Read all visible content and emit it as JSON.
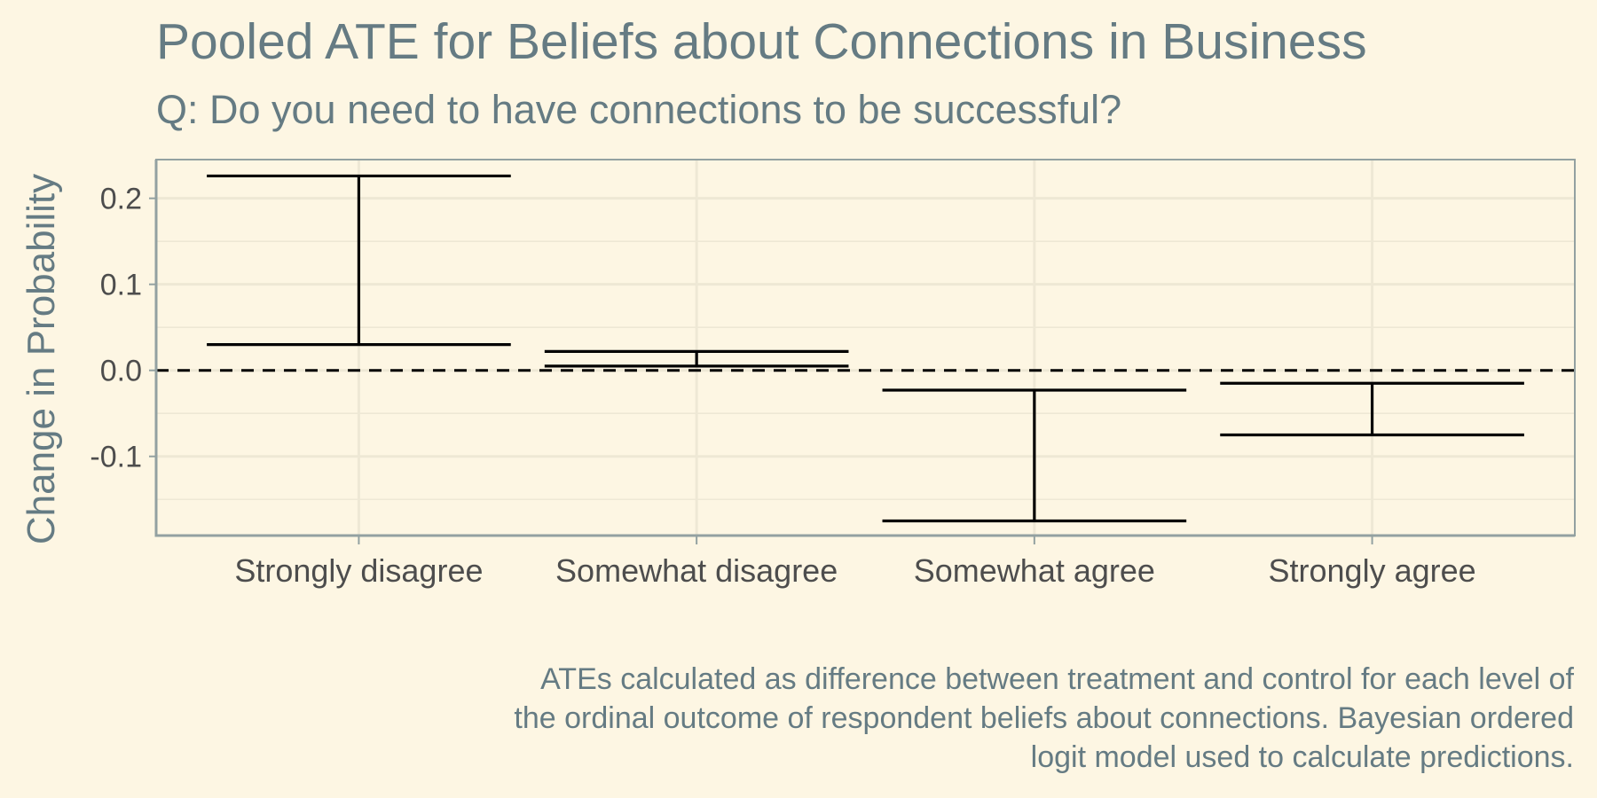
{
  "chart_data": {
    "type": "errorbar",
    "title": "Pooled ATE for Beliefs about Connections in Business",
    "subtitle": "Q: Do you need to have connections to be successful?",
    "ylabel": "Change in Probability",
    "xlabel": "",
    "categories": [
      "Strongly disagree",
      "Somewhat disagree",
      "Somewhat agree",
      "Strongly agree"
    ],
    "lower": [
      0.03,
      0.005,
      -0.175,
      -0.075
    ],
    "upper": [
      0.226,
      0.022,
      -0.023,
      -0.015
    ],
    "ylim": [
      -0.192,
      0.245
    ],
    "yticks": [
      0.2,
      0.1,
      0.0,
      -0.1
    ],
    "ytick_labels": [
      "0.2",
      "0.1",
      "0.0",
      "-0.1"
    ],
    "reference_line": 0,
    "grid": true,
    "caption_lines": [
      "ATEs calculated as difference between treatment and control for each level of",
      "the ordinal outcome of respondent beliefs about connections. Bayesian ordered",
      "logit model used to calculate predictions."
    ]
  },
  "colors": {
    "background": "#FDF6E3",
    "text": "#657B83",
    "tick_text": "#4D4D4D",
    "grid": "#EEE8D5",
    "axis": "#93A1A1",
    "errorbar": "#000000"
  }
}
